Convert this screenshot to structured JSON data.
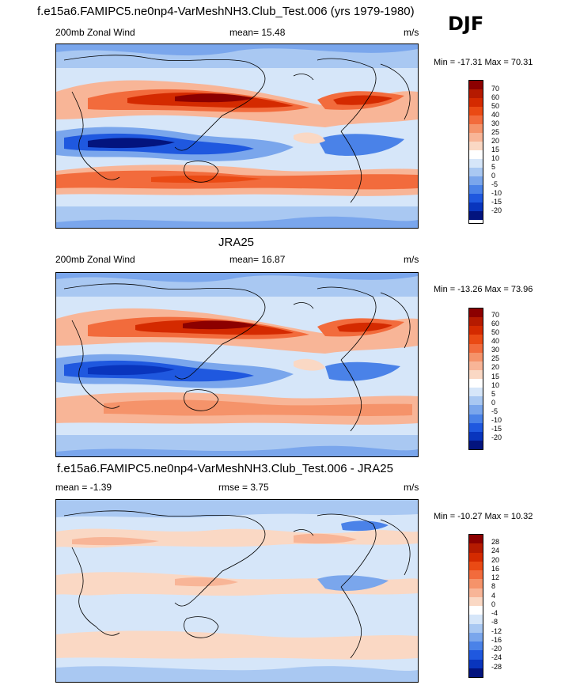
{
  "season": "DJF",
  "panels": [
    {
      "title": "f.e15a6.FAMIPC5.ne0np4-VarMeshNH3.Club_Test.006 (yrs 1979-1980)",
      "left_label": "200mb Zonal Wind",
      "stat_label": "mean=  15.48",
      "units": "m/s",
      "minmax": "Min = -17.31 Max =  70.31",
      "colorbar_labels": [
        "70",
        "60",
        "50",
        "40",
        "30",
        "25",
        "20",
        "15",
        "10",
        "5",
        "0",
        "-5",
        "-10",
        "-15",
        "-20"
      ],
      "colorbar_colors": [
        "#8c0000",
        "#b51a00",
        "#d42a00",
        "#ea4a14",
        "#f26b3c",
        "#f5936a",
        "#f8b597",
        "#fad8c4",
        "#ffffff",
        "#d6e6f9",
        "#a9c8f2",
        "#7aa6ec",
        "#4a82e8",
        "#1f58df",
        "#0935bd",
        "#03147e"
      ],
      "map_kind": "field"
    },
    {
      "title": "JRA25",
      "left_label": "200mb Zonal Wind",
      "stat_label": "mean=  16.87",
      "units": "m/s",
      "minmax": "Min = -13.26 Max =  73.96",
      "colorbar_labels": [
        "70",
        "60",
        "50",
        "40",
        "30",
        "25",
        "20",
        "15",
        "10",
        "5",
        "0",
        "-5",
        "-10",
        "-15",
        "-20"
      ],
      "colorbar_colors": [
        "#8c0000",
        "#b51a00",
        "#d42a00",
        "#ea4a14",
        "#f26b3c",
        "#f5936a",
        "#f8b597",
        "#fad8c4",
        "#ffffff",
        "#d6e6f9",
        "#a9c8f2",
        "#7aa6ec",
        "#4a82e8",
        "#1f58df",
        "#0935bd",
        "#03147e"
      ],
      "map_kind": "field"
    },
    {
      "title": "f.e15a6.FAMIPC5.ne0np4-VarMeshNH3.Club_Test.006 - JRA25",
      "left_label": "mean =  -1.39",
      "stat_label": "rmse =   3.75",
      "units": "m/s",
      "minmax": "Min = -10.27 Max =  10.32",
      "colorbar_labels": [
        "28",
        "24",
        "20",
        "16",
        "12",
        "8",
        "4",
        "0",
        "-4",
        "-8",
        "-12",
        "-16",
        "-20",
        "-24",
        "-28"
      ],
      "colorbar_colors": [
        "#8c0000",
        "#b51a00",
        "#d42a00",
        "#ea4a14",
        "#f26b3c",
        "#f5936a",
        "#f8b597",
        "#fad8c4",
        "#ffffff",
        "#d6e6f9",
        "#a9c8f2",
        "#7aa6ec",
        "#4a82e8",
        "#1f58df",
        "#0935bd",
        "#03147e"
      ],
      "map_kind": "difference"
    }
  ]
}
